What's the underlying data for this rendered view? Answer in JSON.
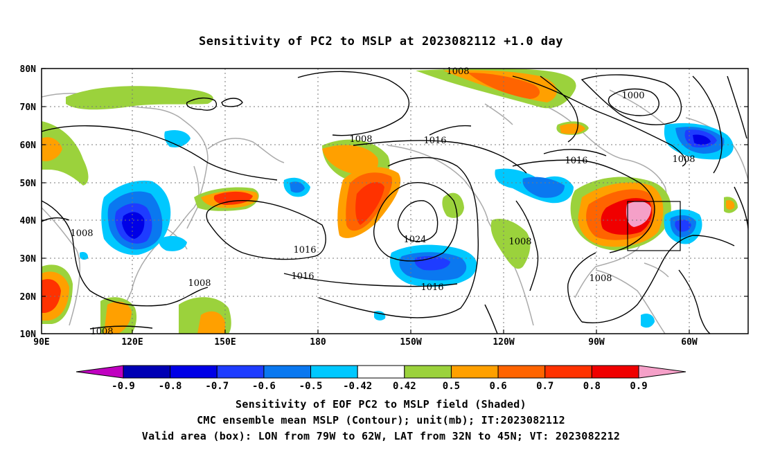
{
  "title": "Sensitivity of PC2 to MSLP at 2023082112 +1.0 day",
  "map": {
    "lat_ticks": [
      "80N",
      "70N",
      "60N",
      "50N",
      "40N",
      "30N",
      "20N",
      "10N"
    ],
    "lon_ticks": [
      "90E",
      "120E",
      "150E",
      "180",
      "150W",
      "120W",
      "90W",
      "60W"
    ],
    "contour_labels": [
      "1008",
      "1008",
      "1016",
      "1000",
      "1008",
      "1016",
      "1008",
      "1016",
      "1024",
      "1008",
      "1016",
      "1016",
      "1008",
      "1008",
      "1008"
    ],
    "valid_box": {
      "lon_from": "79W",
      "lon_to": "62W",
      "lat_from": "32N",
      "lat_to": "45N"
    }
  },
  "colorbar": {
    "labels": [
      "-0.9",
      "-0.8",
      "-0.7",
      "-0.6",
      "-0.5",
      "-0.42",
      "0.42",
      "0.5",
      "0.6",
      "0.7",
      "0.8",
      "0.9"
    ],
    "colors": [
      "#c000c0",
      "#0000b4",
      "#0000e6",
      "#1e3cff",
      "#0a78f0",
      "#00c8ff",
      "#ffffff",
      "#9bd23c",
      "#ffa000",
      "#ff6400",
      "#ff3200",
      "#f00000",
      "#f5a0c8"
    ]
  },
  "captions": [
    "Sensitivity of EOF PC2 to MSLP field (Shaded)",
    "CMC ensemble mean MSLP (Contour); unit(mb); IT:2023082112",
    "Valid area (box): LON from 79W to 62W, LAT from 32N to 45N; VT: 2023082212"
  ]
}
